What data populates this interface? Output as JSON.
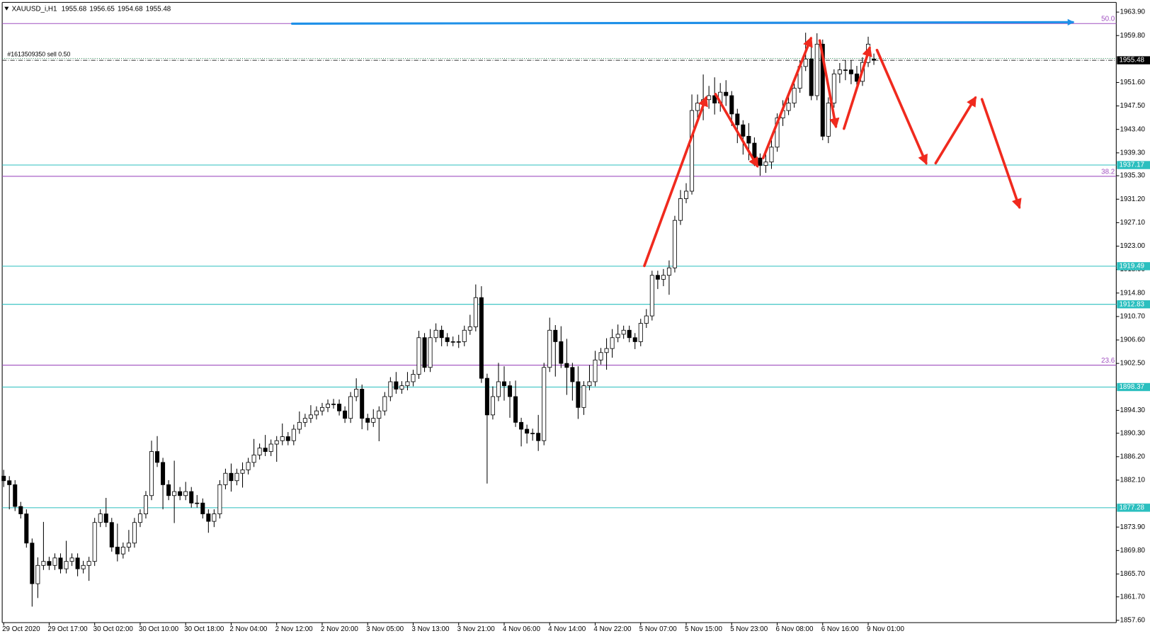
{
  "chart_data": {
    "type": "candlestick",
    "symbol": "XAUUSD_i,H1",
    "categories": [
      "29 Oct 2020",
      null,
      null,
      null,
      null,
      null,
      null,
      null,
      "29 Oct 17:00",
      null,
      null,
      null,
      null,
      null,
      null,
      null,
      "30 Oct 02:00",
      null,
      null,
      null,
      null,
      null,
      null,
      null,
      "30 Oct 10:00",
      null,
      null,
      null,
      null,
      null,
      null,
      null,
      "30 Oct 18:00",
      null,
      null,
      null,
      null,
      null,
      null,
      null,
      "2 Nov 04:00",
      null,
      null,
      null,
      null,
      null,
      null,
      null,
      "2 Nov 12:00",
      null,
      null,
      null,
      null,
      null,
      null,
      null,
      "2 Nov 20:00",
      null,
      null,
      null,
      null,
      null,
      null,
      null,
      "3 Nov 05:00",
      null,
      null,
      null,
      null,
      null,
      null,
      null,
      "3 Nov 13:00",
      null,
      null,
      null,
      null,
      null,
      null,
      null,
      "3 Nov 21:00",
      null,
      null,
      null,
      null,
      null,
      null,
      null,
      "4 Nov 06:00",
      null,
      null,
      null,
      null,
      null,
      null,
      null,
      "4 Nov 14:00",
      null,
      null,
      null,
      null,
      null,
      null,
      null,
      "4 Nov 22:00",
      null,
      null,
      null,
      null,
      null,
      null,
      null,
      "5 Nov 07:00",
      null,
      null,
      null,
      null,
      null,
      null,
      null,
      "5 Nov 15:00",
      null,
      null,
      null,
      null,
      null,
      null,
      null,
      "5 Nov 23:00",
      null,
      null,
      null,
      null,
      null,
      null,
      null,
      "6 Nov 08:00",
      null,
      null,
      null,
      null,
      null,
      null,
      null,
      "6 Nov 16:00",
      null,
      null,
      null,
      null,
      null,
      null,
      null,
      "9 Nov 01:00",
      null
    ],
    "open": [
      1882.8,
      1882.0,
      1881.3,
      1877.5,
      1876.2,
      1871.1,
      1864.0,
      1867.2,
      1867.9,
      1867.2,
      1868.5,
      1866.6,
      1867.9,
      1868.5,
      1866.6,
      1867.2,
      1867.9,
      1874.7,
      1876.2,
      1874.7,
      1870.4,
      1869.2,
      1870.4,
      1871.1,
      1874.7,
      1876.2,
      1879.4,
      1887.1,
      1885.2,
      1881.3,
      1879.4,
      1880.1,
      1879.4,
      1880.1,
      1878.1,
      1878.1,
      1876.2,
      1874.9,
      1876.2,
      1881.3,
      1883.3,
      1882.0,
      1883.3,
      1883.9,
      1885.2,
      1886.5,
      1887.7,
      1887.1,
      1888.4,
      1889.0,
      1889.7,
      1889.0,
      1891.0,
      1892.2,
      1892.9,
      1893.5,
      1894.2,
      1894.8,
      1895.4,
      1895.4,
      1894.2,
      1892.9,
      1896.7,
      1898.0,
      1892.9,
      1892.2,
      1892.9,
      1894.2,
      1896.7,
      1899.3,
      1898.0,
      1898.6,
      1899.3,
      1900.6,
      1907.0,
      1901.8,
      1907.0,
      1908.3,
      1907.0,
      1906.3,
      1906.3,
      1906.3,
      1908.3,
      1908.9,
      1914.0,
      1899.9,
      1893.5,
      1896.7,
      1899.3,
      1898.6,
      1896.7,
      1892.2,
      1891.0,
      1890.3,
      1890.3,
      1889.0,
      1901.8,
      1908.3,
      1906.3,
      1902.5,
      1901.8,
      1899.3,
      1894.8,
      1898.6,
      1899.3,
      1903.1,
      1904.4,
      1905.1,
      1907.0,
      1907.6,
      1908.3,
      1907.0,
      1906.3,
      1909.5,
      1910.8,
      1917.9,
      1917.2,
      1917.9,
      1919.2,
      1927.5,
      1931.3,
      1932.6,
      1946.7,
      1948.0,
      1948.6,
      1949.3,
      1948.0,
      1949.9,
      1949.3,
      1946.1,
      1944.2,
      1942.2,
      1941.0,
      1938.4,
      1937.1,
      1937.7,
      1940.3,
      1945.4,
      1946.7,
      1948.0,
      1950.6,
      1954.4,
      1955.7,
      1949.3,
      1958.3,
      1942.2,
      1948.0,
      1953.1,
      1953.8,
      1953.8,
      1953.1,
      1951.8,
      1955.1,
      1955.68
    ],
    "high": [
      1883.9,
      1882.8,
      1882.1,
      1878.3,
      1877.0,
      1871.9,
      1868.6,
      1874.8,
      1868.7,
      1869.3,
      1869.3,
      1871.5,
      1869.3,
      1869.3,
      1868.0,
      1868.7,
      1875.5,
      1877.0,
      1879.0,
      1875.5,
      1874.5,
      1871.2,
      1873.4,
      1875.5,
      1877.0,
      1880.2,
      1889.0,
      1889.8,
      1886.0,
      1882.1,
      1885.5,
      1880.9,
      1881.8,
      1880.9,
      1879.5,
      1878.9,
      1877.0,
      1877.0,
      1882.1,
      1884.1,
      1885.0,
      1884.1,
      1885.2,
      1886.0,
      1889.3,
      1888.5,
      1890.0,
      1889.2,
      1889.8,
      1892.0,
      1890.5,
      1891.8,
      1894.1,
      1893.7,
      1895.2,
      1895.0,
      1895.6,
      1896.2,
      1896.3,
      1896.2,
      1895.0,
      1897.5,
      1899.9,
      1898.8,
      1893.7,
      1894.5,
      1895.0,
      1897.5,
      1900.1,
      1901.0,
      1899.4,
      1901.0,
      1901.4,
      1908.2,
      1907.8,
      1908.5,
      1909.5,
      1909.1,
      1907.8,
      1907.2,
      1907.5,
      1909.1,
      1911.0,
      1916.3,
      1916.0,
      1900.7,
      1898.5,
      1902.6,
      1902.0,
      1899.4,
      1899.5,
      1893.0,
      1891.8,
      1891.1,
      1893.5,
      1902.6,
      1910.5,
      1909.2,
      1909.0,
      1906.8,
      1902.6,
      1902.0,
      1899.4,
      1902.2,
      1904.7,
      1905.2,
      1906.9,
      1908.5,
      1909.3,
      1909.1,
      1909.1,
      1907.8,
      1910.3,
      1912.0,
      1918.7,
      1918.7,
      1919.0,
      1920.5,
      1928.3,
      1932.8,
      1934.0,
      1949.5,
      1949.5,
      1953.0,
      1951.0,
      1952.5,
      1951.5,
      1952.0,
      1950.1,
      1947.0,
      1945.0,
      1944.5,
      1942.0,
      1939.2,
      1939.5,
      1941.5,
      1946.2,
      1948.5,
      1949.5,
      1951.4,
      1955.5,
      1960.3,
      1958.0,
      1960.2,
      1959.1,
      1949.0,
      1953.9,
      1955.0,
      1955.5,
      1955.5,
      1954.5,
      1956.0,
      1959.6,
      1956.65
    ],
    "low": [
      1880.9,
      1877.0,
      1876.7,
      1875.4,
      1870.3,
      1860.0,
      1861.5,
      1866.4,
      1866.4,
      1866.4,
      1865.8,
      1865.8,
      1867.1,
      1865.3,
      1865.8,
      1864.5,
      1867.1,
      1873.9,
      1873.9,
      1869.6,
      1867.9,
      1868.4,
      1869.6,
      1870.3,
      1873.9,
      1875.4,
      1878.6,
      1884.4,
      1877.0,
      1878.6,
      1874.6,
      1878.6,
      1878.6,
      1877.3,
      1877.3,
      1875.4,
      1872.9,
      1873.9,
      1875.4,
      1880.5,
      1880.1,
      1881.2,
      1880.8,
      1883.1,
      1884.4,
      1885.7,
      1886.3,
      1886.3,
      1885.3,
      1888.2,
      1888.2,
      1888.2,
      1890.2,
      1891.4,
      1892.1,
      1892.7,
      1893.4,
      1894.0,
      1894.6,
      1893.4,
      1892.1,
      1892.1,
      1895.9,
      1891.0,
      1890.8,
      1891.4,
      1888.9,
      1893.4,
      1895.9,
      1897.2,
      1897.2,
      1897.8,
      1898.5,
      1899.8,
      1901.0,
      1901.0,
      1906.2,
      1905.5,
      1905.5,
      1905.5,
      1905.2,
      1905.5,
      1907.5,
      1908.1,
      1899.1,
      1881.5,
      1892.7,
      1895.9,
      1896.0,
      1893.0,
      1891.4,
      1888.0,
      1888.5,
      1889.0,
      1887.2,
      1888.2,
      1901.0,
      1900.2,
      1901.7,
      1897.0,
      1896.0,
      1892.8,
      1893.5,
      1897.8,
      1898.5,
      1902.3,
      1901.4,
      1903.5,
      1906.2,
      1906.8,
      1906.2,
      1905.0,
      1905.5,
      1908.7,
      1910.0,
      1915.5,
      1916.0,
      1914.5,
      1918.4,
      1926.7,
      1930.5,
      1932.0,
      1944.5,
      1945.0,
      1947.0,
      1946.0,
      1946.5,
      1947.5,
      1944.0,
      1941.0,
      1939.0,
      1938.0,
      1937.0,
      1935.3,
      1935.8,
      1936.5,
      1939.5,
      1944.0,
      1945.9,
      1947.2,
      1949.8,
      1953.6,
      1948.5,
      1948.5,
      1941.5,
      1941.0,
      1947.2,
      1951.5,
      1952.0,
      1951.3,
      1950.5,
      1951.0,
      1954.3,
      1954.68
    ],
    "close": [
      1882.0,
      1881.3,
      1877.5,
      1876.2,
      1871.1,
      1864.0,
      1867.2,
      1867.9,
      1867.2,
      1868.5,
      1866.6,
      1867.9,
      1868.5,
      1866.6,
      1867.2,
      1867.9,
      1874.7,
      1876.2,
      1874.7,
      1870.4,
      1869.2,
      1870.4,
      1871.1,
      1874.7,
      1876.2,
      1879.4,
      1887.1,
      1885.2,
      1881.3,
      1879.4,
      1880.1,
      1879.4,
      1880.1,
      1878.1,
      1878.1,
      1876.2,
      1874.9,
      1876.2,
      1881.3,
      1883.3,
      1882.0,
      1883.3,
      1883.9,
      1885.2,
      1886.5,
      1887.7,
      1887.1,
      1888.4,
      1889.0,
      1889.7,
      1889.0,
      1891.0,
      1892.2,
      1892.9,
      1893.5,
      1894.2,
      1894.8,
      1895.4,
      1895.4,
      1894.2,
      1892.9,
      1896.7,
      1898.0,
      1892.9,
      1892.2,
      1892.9,
      1894.2,
      1896.7,
      1899.3,
      1898.0,
      1898.6,
      1899.3,
      1900.6,
      1907.0,
      1901.8,
      1907.0,
      1908.3,
      1907.0,
      1906.3,
      1906.3,
      1906.3,
      1908.3,
      1908.9,
      1914.0,
      1899.9,
      1893.5,
      1896.7,
      1899.3,
      1898.6,
      1896.7,
      1892.2,
      1891.0,
      1890.3,
      1890.3,
      1889.0,
      1901.8,
      1908.3,
      1906.3,
      1902.5,
      1901.8,
      1899.3,
      1894.8,
      1898.6,
      1899.3,
      1903.1,
      1904.4,
      1905.1,
      1907.0,
      1907.6,
      1908.3,
      1907.0,
      1906.3,
      1909.5,
      1910.8,
      1917.9,
      1917.2,
      1917.9,
      1919.2,
      1927.5,
      1931.3,
      1932.6,
      1946.7,
      1948.0,
      1948.6,
      1949.3,
      1948.0,
      1949.9,
      1949.3,
      1946.1,
      1944.2,
      1942.2,
      1941.0,
      1938.4,
      1937.1,
      1937.7,
      1940.3,
      1945.4,
      1946.7,
      1948.0,
      1950.6,
      1954.4,
      1955.7,
      1949.3,
      1958.3,
      1942.2,
      1948.0,
      1953.1,
      1953.8,
      1953.8,
      1953.1,
      1951.8,
      1955.1,
      1958.3,
      1955.48
    ],
    "bull_color": "#ffffff",
    "bear_color": "#000000",
    "ylim": [
      1857.2,
      1965.6
    ],
    "yticks": [
      {
        "value": 1963.9,
        "label": "1963.90"
      },
      {
        "value": 1959.8,
        "label": "1959.80"
      },
      {
        "value": 1951.6,
        "label": "1951.60"
      },
      {
        "value": 1947.5,
        "label": "1947.50"
      },
      {
        "value": 1943.4,
        "label": "1943.40"
      },
      {
        "value": 1939.3,
        "label": "1939.30"
      },
      {
        "value": 1935.3,
        "label": "1935.30"
      },
      {
        "value": 1931.2,
        "label": "1931.20"
      },
      {
        "value": 1927.1,
        "label": "1927.10"
      },
      {
        "value": 1923.0,
        "label": "1923.00"
      },
      {
        "value": 1918.9,
        "label": "1918.90"
      },
      {
        "value": 1914.8,
        "label": "1914.80"
      },
      {
        "value": 1910.7,
        "label": "1910.70"
      },
      {
        "value": 1906.6,
        "label": "1906.60"
      },
      {
        "value": 1902.5,
        "label": "1902.50"
      },
      {
        "value": 1894.3,
        "label": "1894.30"
      },
      {
        "value": 1890.3,
        "label": "1890.30"
      },
      {
        "value": 1886.2,
        "label": "1886.20"
      },
      {
        "value": 1882.1,
        "label": "1882.10"
      },
      {
        "value": 1873.9,
        "label": "1873.90"
      },
      {
        "value": 1869.8,
        "label": "1869.80"
      },
      {
        "value": 1865.7,
        "label": "1865.70"
      },
      {
        "value": 1861.7,
        "label": "1861.70"
      },
      {
        "value": 1857.6,
        "label": "1857.60"
      }
    ],
    "levels": [
      1937.17,
      1919.49,
      1912.83,
      1898.37,
      1877.28
    ],
    "level_color": "#2bbfbf",
    "fib_levels": [
      {
        "label": "50.0",
        "value": 1961.9
      },
      {
        "label": "38.2",
        "value": 1935.2
      },
      {
        "label": "23.6",
        "value": 1902.2
      }
    ],
    "fib_color": "#a050c0",
    "order": {
      "label": "#1613509350 sell 0.50",
      "value": 1955.8
    },
    "order_color": "#2e8b57"
  }
}
